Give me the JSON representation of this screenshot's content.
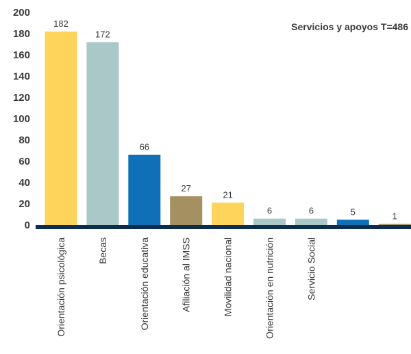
{
  "chart_data": {
    "type": "bar",
    "title": "Servicios y apoyos T=486",
    "xlabel": "",
    "ylabel": "",
    "ylim": [
      0,
      200
    ],
    "yticks": [
      0,
      20,
      40,
      60,
      80,
      100,
      120,
      140,
      160,
      180,
      200
    ],
    "grid": false,
    "legend": "none",
    "categories": [
      "Orientación psicológica",
      "Becas",
      "Orientación educativa",
      "Afiliación al IMSS",
      "Movilidad nacional",
      "Orientación en nutrición",
      "Servicio Social",
      "",
      ""
    ],
    "values": [
      182,
      172,
      66,
      27,
      21,
      6,
      6,
      5,
      1
    ],
    "bar_colors": [
      "#fed45a",
      "#a9c8c7",
      "#0f70b7",
      "#a49060",
      "#fed45a",
      "#a9c8c7",
      "#a9c8c7",
      "#0f70b7",
      "#a49060"
    ],
    "axis_color": "#0d2d4d"
  }
}
